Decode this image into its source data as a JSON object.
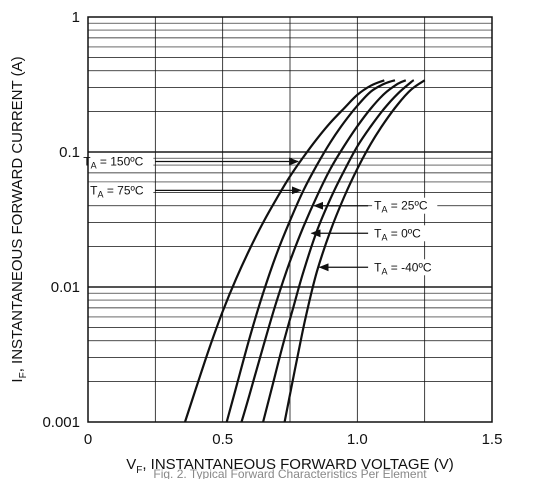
{
  "chart_data": {
    "type": "line",
    "xlabel_main": "V",
    "xlabel_sub": "F",
    "xlabel_rest": ", INSTANTANEOUS FORWARD VOLTAGE (V)",
    "ylabel_main": "I",
    "ylabel_sub": "F",
    "ylabel_rest": ", INSTANTANEOUS FORWARD CURRENT (A)",
    "x_scale": "linear",
    "y_scale": "log",
    "xlim": [
      0,
      1.5
    ],
    "ylim": [
      0.001,
      1
    ],
    "x_ticks": [
      {
        "value": 0,
        "label": "0"
      },
      {
        "value": 0.5,
        "label": "0.5"
      },
      {
        "value": 1.0,
        "label": "1.0"
      },
      {
        "value": 1.5,
        "label": "1.5"
      }
    ],
    "y_ticks": [
      {
        "value": 1,
        "label": "1"
      },
      {
        "value": 0.1,
        "label": "0.1"
      },
      {
        "value": 0.01,
        "label": "0.01"
      },
      {
        "value": 0.001,
        "label": "0.001"
      }
    ],
    "x_minor_grid": [
      0.25,
      0.75,
      1.25
    ],
    "grid": true,
    "caption": "Fig. 2. Typical Forward Characteristics Per Element",
    "series": [
      {
        "name": "T_A = 150ºC",
        "label_main": "T",
        "label_sub": "A",
        "label_rest": " = 150ºC",
        "side": "left",
        "arrow_to": [
          0.78,
          0.085
        ],
        "label_at": [
          0.25,
          0.085
        ],
        "points": [
          [
            0.36,
            0.001
          ],
          [
            0.4,
            0.00175
          ],
          [
            0.45,
            0.0035
          ],
          [
            0.5,
            0.0066
          ],
          [
            0.55,
            0.0115
          ],
          [
            0.6,
            0.019
          ],
          [
            0.65,
            0.03
          ],
          [
            0.7,
            0.045
          ],
          [
            0.75,
            0.066
          ],
          [
            0.8,
            0.092
          ],
          [
            0.85,
            0.125
          ],
          [
            0.9,
            0.165
          ],
          [
            0.95,
            0.21
          ],
          [
            1.0,
            0.265
          ],
          [
            1.05,
            0.31
          ],
          [
            1.1,
            0.34
          ]
        ]
      },
      {
        "name": "T_A = 75ºC",
        "label_main": "T",
        "label_sub": "A",
        "label_rest": " = 75ºC",
        "side": "left",
        "arrow_to": [
          0.79,
          0.052
        ],
        "label_at": [
          0.25,
          0.052
        ],
        "points": [
          [
            0.515,
            0.001
          ],
          [
            0.55,
            0.0018
          ],
          [
            0.6,
            0.0042
          ],
          [
            0.65,
            0.009
          ],
          [
            0.7,
            0.0175
          ],
          [
            0.75,
            0.031
          ],
          [
            0.8,
            0.052
          ],
          [
            0.85,
            0.08
          ],
          [
            0.9,
            0.118
          ],
          [
            0.95,
            0.165
          ],
          [
            1.0,
            0.22
          ],
          [
            1.05,
            0.28
          ],
          [
            1.1,
            0.32
          ],
          [
            1.14,
            0.34
          ]
        ]
      },
      {
        "name": "T_A = 25ºC",
        "label_main": "T",
        "label_sub": "A",
        "label_rest": " = 25ºC",
        "side": "right",
        "arrow_to": [
          0.84,
          0.04
        ],
        "label_at": [
          1.04,
          0.04
        ],
        "points": [
          [
            0.57,
            0.001
          ],
          [
            0.6,
            0.0016
          ],
          [
            0.65,
            0.0036
          ],
          [
            0.7,
            0.0078
          ],
          [
            0.75,
            0.0155
          ],
          [
            0.8,
            0.028
          ],
          [
            0.85,
            0.047
          ],
          [
            0.9,
            0.075
          ],
          [
            0.95,
            0.11
          ],
          [
            1.0,
            0.155
          ],
          [
            1.05,
            0.21
          ],
          [
            1.1,
            0.27
          ],
          [
            1.15,
            0.32
          ],
          [
            1.18,
            0.34
          ]
        ]
      },
      {
        "name": "T_A = 0ºC",
        "label_main": "T",
        "label_sub": "A",
        "label_rest": " = 0ºC",
        "side": "right",
        "arrow_to": [
          0.83,
          0.025
        ],
        "label_at": [
          1.04,
          0.025
        ],
        "points": [
          [
            0.65,
            0.001
          ],
          [
            0.68,
            0.0017
          ],
          [
            0.72,
            0.0035
          ],
          [
            0.76,
            0.0068
          ],
          [
            0.8,
            0.013
          ],
          [
            0.85,
            0.026
          ],
          [
            0.9,
            0.045
          ],
          [
            0.95,
            0.072
          ],
          [
            1.0,
            0.11
          ],
          [
            1.05,
            0.155
          ],
          [
            1.1,
            0.21
          ],
          [
            1.15,
            0.27
          ],
          [
            1.2,
            0.33
          ],
          [
            1.21,
            0.34
          ]
        ]
      },
      {
        "name": "T_A = -40ºC",
        "label_main": "T",
        "label_sub": "A",
        "label_rest": " = -40ºC",
        "side": "right",
        "arrow_to": [
          0.86,
          0.014
        ],
        "label_at": [
          1.04,
          0.014
        ],
        "points": [
          [
            0.73,
            0.001
          ],
          [
            0.75,
            0.0016
          ],
          [
            0.78,
            0.0032
          ],
          [
            0.81,
            0.0062
          ],
          [
            0.85,
            0.013
          ],
          [
            0.9,
            0.026
          ],
          [
            0.95,
            0.046
          ],
          [
            1.0,
            0.075
          ],
          [
            1.05,
            0.115
          ],
          [
            1.1,
            0.165
          ],
          [
            1.15,
            0.225
          ],
          [
            1.2,
            0.29
          ],
          [
            1.25,
            0.34
          ]
        ]
      }
    ]
  }
}
